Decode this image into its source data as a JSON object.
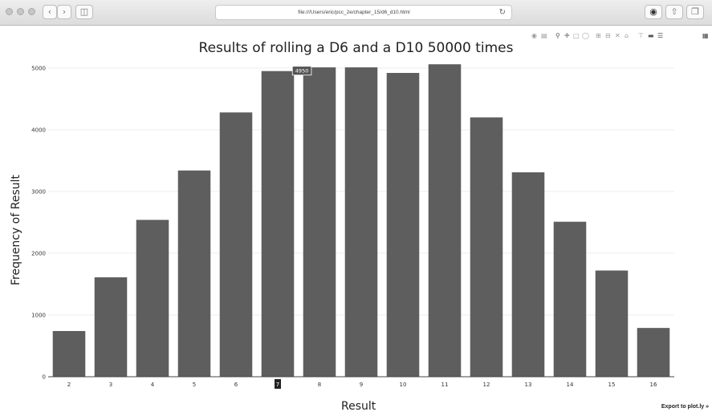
{
  "browser": {
    "url": "file:///Users/eric/pcc_2e/chapter_15/d6_d10.html",
    "back_icon": "chevron-left-icon",
    "forward_icon": "chevron-right-icon",
    "sidebar_icon": "sidebar-icon",
    "reload_icon": "reload-icon",
    "share_icon": "share-icon",
    "tabs_icon": "tabs-icon"
  },
  "modebar": {
    "icons": [
      "camera-icon",
      "save-icon",
      "zoom-icon",
      "pan-icon",
      "box-select-icon",
      "lasso-select-icon",
      "zoom-in-icon",
      "zoom-out-icon",
      "autoscale-icon",
      "reset-axes-icon",
      "spike-lines-icon",
      "hover-closest-icon",
      "hover-compare-icon",
      "plotly-logo-icon"
    ]
  },
  "export_link": "Export to plot.ly »",
  "chart_data": {
    "type": "bar",
    "title": "Results of rolling a D6 and a D10 50000 times",
    "xlabel": "Result",
    "ylabel": "Frequency of Result",
    "categories": [
      "2",
      "3",
      "4",
      "5",
      "6",
      "7",
      "8",
      "9",
      "10",
      "11",
      "12",
      "13",
      "14",
      "15",
      "16"
    ],
    "values": [
      740,
      1610,
      2540,
      3340,
      4280,
      4950,
      5010,
      5010,
      4920,
      5060,
      4200,
      3310,
      2510,
      1720,
      790
    ],
    "ylim": [
      0,
      5400
    ],
    "yticks": [
      0,
      1000,
      2000,
      3000,
      4000,
      5000
    ],
    "bar_color": "#5e5e5e",
    "hover": {
      "category": "7",
      "label": "4950"
    },
    "grid": true,
    "legend": "none"
  }
}
